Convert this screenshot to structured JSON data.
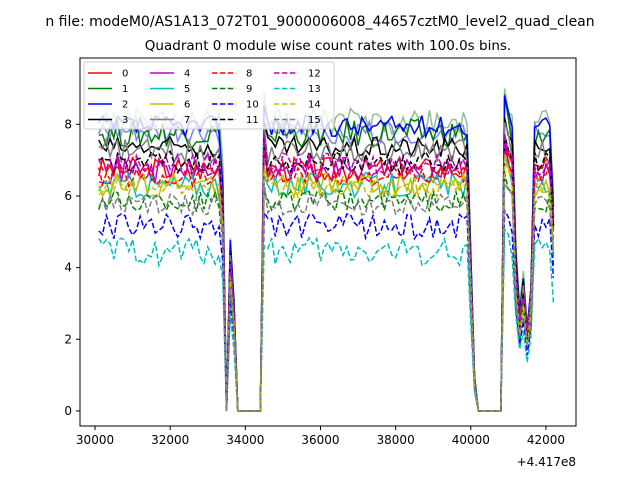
{
  "figure": {
    "suptitle": "n file: modeM0/AS1A13_072T01_9000006008_44657cztM0_level2_quad_clean"
  },
  "chart_data": {
    "type": "line",
    "title": "Quadrant 0 module wise count rates with 100.0s bins.",
    "xlabel": "",
    "ylabel": "",
    "offset_label": "+4.417e8",
    "xlim": [
      29600,
      42800
    ],
    "ylim": [
      -0.42,
      9.85
    ],
    "xticks": [
      30000,
      32000,
      34000,
      36000,
      38000,
      40000,
      42000
    ],
    "yticks": [
      0,
      2,
      4,
      6,
      8
    ],
    "bin_width_s": 100,
    "x_start": 30100,
    "x_end": 42200,
    "gaps": [
      [
        33500,
        34400
      ],
      [
        40200,
        40800
      ]
    ],
    "legend_placement": "top-left",
    "legend_ncol": 4,
    "series": [
      {
        "name": "0",
        "color": "#ff0000",
        "dash": "solid",
        "level": 6.75,
        "amp": 0.35
      },
      {
        "name": "1",
        "color": "#008000",
        "dash": "solid",
        "level": 7.75,
        "amp": 0.4
      },
      {
        "name": "2",
        "color": "#0000ff",
        "dash": "solid",
        "level": 7.95,
        "amp": 0.3
      },
      {
        "name": "3",
        "color": "#000000",
        "dash": "solid",
        "level": 7.35,
        "amp": 0.3
      },
      {
        "name": "4",
        "color": "#bf00bf",
        "dash": "solid",
        "level": 6.7,
        "amp": 0.35
      },
      {
        "name": "5",
        "color": "#00bfbf",
        "dash": "solid",
        "level": 6.3,
        "amp": 0.35
      },
      {
        "name": "6",
        "color": "#bfbf00",
        "dash": "solid",
        "level": 6.3,
        "amp": 0.35
      },
      {
        "name": "7",
        "color": "#808080",
        "dash": "solid",
        "level": 7.25,
        "amp": 0.35
      },
      {
        "name": "8",
        "color": "#ff0000",
        "dash": "dashed",
        "level": 6.55,
        "amp": 0.3
      },
      {
        "name": "9",
        "color": "#008000",
        "dash": "dashed",
        "level": 5.85,
        "amp": 0.3
      },
      {
        "name": "10",
        "color": "#0000ff",
        "dash": "dashed",
        "level": 5.15,
        "amp": 0.35
      },
      {
        "name": "11",
        "color": "#000000",
        "dash": "dashed",
        "level": 6.95,
        "amp": 0.3
      },
      {
        "name": "12",
        "color": "#bf00bf",
        "dash": "dashed",
        "level": 6.9,
        "amp": 0.3
      },
      {
        "name": "13",
        "color": "#00bfbf",
        "dash": "dashed",
        "level": 4.45,
        "amp": 0.4
      },
      {
        "name": "14",
        "color": "#bfbf00",
        "dash": "dashed",
        "level": 6.25,
        "amp": 0.3
      },
      {
        "name": "15",
        "color": "#7f7f7f",
        "dash": "dashed",
        "level": 5.75,
        "amp": 0.3
      }
    ],
    "background_series": [
      {
        "color": "#8fbf8f",
        "level": 8.05,
        "amp": 0.4
      },
      {
        "color": "#8080ff",
        "level": 7.75,
        "amp": 0.35
      }
    ]
  }
}
